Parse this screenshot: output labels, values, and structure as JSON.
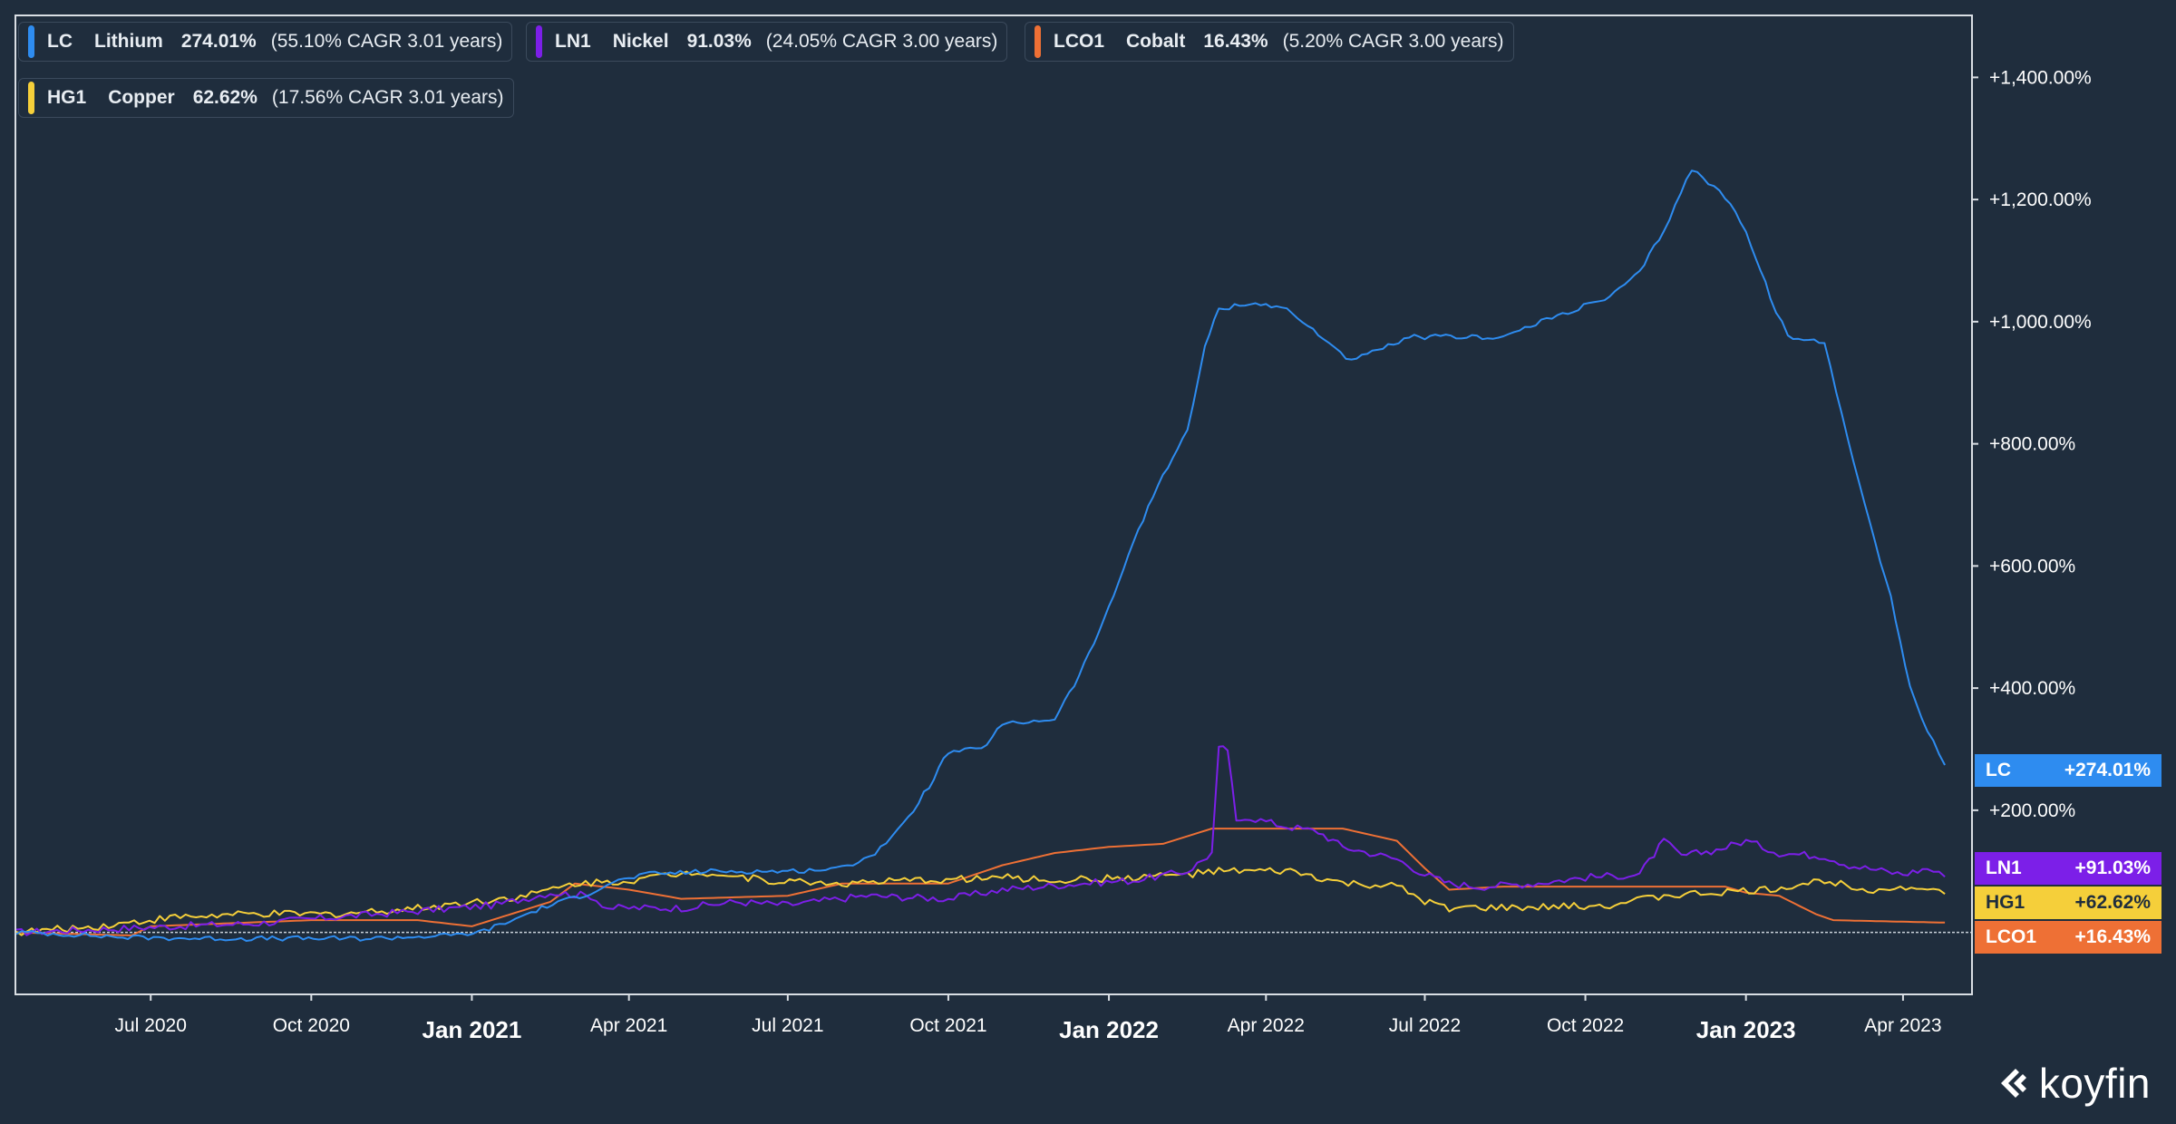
{
  "legend": [
    {
      "ticker": "LC",
      "name": "Lithium",
      "ret": "274.01%",
      "cagr": "(55.10% CAGR 3.01 years)",
      "color": "#2e8cf0"
    },
    {
      "ticker": "LN1",
      "name": "Nickel",
      "ret": "91.03%",
      "cagr": "(24.05% CAGR 3.00 years)",
      "color": "#7c1fe8"
    },
    {
      "ticker": "LCO1",
      "name": "Cobalt",
      "ret": "16.43%",
      "cagr": "(5.20% CAGR 3.00 years)",
      "color": "#ee7035"
    },
    {
      "ticker": "HG1",
      "name": "Copper",
      "ret": "62.62%",
      "cagr": "(17.56% CAGR 3.01 years)",
      "color": "#f5cf3a"
    }
  ],
  "tags": [
    {
      "ticker": "LC",
      "value": "+274.01%",
      "color": "#2e8cf0",
      "text_color": "#ffffff"
    },
    {
      "ticker": "LN1",
      "value": "+91.03%",
      "color": "#7c1fe8",
      "text_color": "#ffffff"
    },
    {
      "ticker": "HG1",
      "value": "+62.62%",
      "color": "#f5cf3a",
      "text_color": "#1f2d3d"
    },
    {
      "ticker": "LCO1",
      "value": "+16.43%",
      "color": "#ee7035",
      "text_color": "#ffffff"
    }
  ],
  "brand": {
    "name": "koyfin"
  },
  "chart_data": {
    "type": "line",
    "title": "",
    "xlabel": "",
    "ylabel": "",
    "x_range": [
      "2020-04-15",
      "2023-05-10"
    ],
    "ylim": [
      -100,
      1500
    ],
    "y_ticks": [
      {
        "value": 200,
        "label": "+200.00%"
      },
      {
        "value": 400,
        "label": "+400.00%"
      },
      {
        "value": 600,
        "label": "+600.00%"
      },
      {
        "value": 800,
        "label": "+800.00%"
      },
      {
        "value": 1000,
        "label": "+1,000.00%"
      },
      {
        "value": 1200,
        "label": "+1,200.00%"
      },
      {
        "value": 1400,
        "label": "+1,400.00%"
      }
    ],
    "x_ticks": [
      {
        "date": "2020-07-01",
        "label": "Jul 2020",
        "major": false
      },
      {
        "date": "2020-10-01",
        "label": "Oct 2020",
        "major": false
      },
      {
        "date": "2021-01-01",
        "label": "Jan 2021",
        "major": true
      },
      {
        "date": "2021-04-01",
        "label": "Apr 2021",
        "major": false
      },
      {
        "date": "2021-07-01",
        "label": "Jul 2021",
        "major": false
      },
      {
        "date": "2021-10-01",
        "label": "Oct 2021",
        "major": false
      },
      {
        "date": "2022-01-01",
        "label": "Jan 2022",
        "major": true
      },
      {
        "date": "2022-04-01",
        "label": "Apr 2022",
        "major": false
      },
      {
        "date": "2022-07-01",
        "label": "Jul 2022",
        "major": false
      },
      {
        "date": "2022-10-01",
        "label": "Oct 2022",
        "major": false
      },
      {
        "date": "2023-01-01",
        "label": "Jan 2023",
        "major": true
      },
      {
        "date": "2023-04-01",
        "label": "Apr 2023",
        "major": false
      }
    ],
    "grid": false,
    "legend_position": "top-left",
    "series": [
      {
        "name": "LC",
        "color": "#2e8cf0",
        "points": [
          [
            "2020-04-15",
            0
          ],
          [
            "2020-05-15",
            -3
          ],
          [
            "2020-06-15",
            -8
          ],
          [
            "2020-08-01",
            -10
          ],
          [
            "2020-11-01",
            -10
          ],
          [
            "2020-12-20",
            -5
          ],
          [
            "2021-01-05",
            0
          ],
          [
            "2021-01-20",
            15
          ],
          [
            "2021-02-10",
            40
          ],
          [
            "2021-03-10",
            65
          ],
          [
            "2021-03-20",
            80
          ],
          [
            "2021-04-10",
            95
          ],
          [
            "2021-05-15",
            100
          ],
          [
            "2021-07-01",
            100
          ],
          [
            "2021-08-01",
            105
          ],
          [
            "2021-08-20",
            130
          ],
          [
            "2021-09-05",
            175
          ],
          [
            "2021-09-20",
            240
          ],
          [
            "2021-10-01",
            295
          ],
          [
            "2021-10-20,",
            300
          ],
          [
            "2021-11-01",
            340
          ],
          [
            "2021-12-01",
            350
          ],
          [
            "2021-12-15",
            420
          ],
          [
            "2022-01-01",
            530
          ],
          [
            "2022-01-15",
            640
          ],
          [
            "2022-02-01",
            750
          ],
          [
            "2022-02-15",
            820
          ],
          [
            "2022-02-25",
            960
          ],
          [
            "2022-03-05",
            1020
          ],
          [
            "2022-03-20",
            1030
          ],
          [
            "2022-04-10",
            1025
          ],
          [
            "2022-05-01",
            980
          ],
          [
            "2022-05-20",
            935
          ],
          [
            "2022-06-10",
            960
          ],
          [
            "2022-06-25",
            975
          ],
          [
            "2022-08-15",
            975
          ],
          [
            "2022-09-15",
            1010
          ],
          [
            "2022-10-15",
            1040
          ],
          [
            "2022-11-01",
            1080
          ],
          [
            "2022-11-15",
            1150
          ],
          [
            "2022-12-01",
            1250
          ],
          [
            "2022-12-20",
            1205
          ],
          [
            "2023-01-01",
            1150
          ],
          [
            "2023-01-15",
            1040
          ],
          [
            "2023-01-25",
            975
          ],
          [
            "2023-02-15",
            965
          ],
          [
            "2023-02-25",
            850
          ],
          [
            "2023-03-10",
            700
          ],
          [
            "2023-03-25",
            550
          ],
          [
            "2023-04-05",
            400
          ],
          [
            "2023-04-15",
            330
          ],
          [
            "2023-04-25",
            274
          ]
        ]
      },
      {
        "name": "LN1",
        "color": "#7c1fe8",
        "points": [
          [
            "2020-04-15",
            0
          ],
          [
            "2020-06-01",
            5
          ],
          [
            "2020-07-15",
            10
          ],
          [
            "2020-09-01",
            15
          ],
          [
            "2020-10-15",
            25
          ],
          [
            "2020-12-01",
            35
          ],
          [
            "2021-01-15",
            45
          ],
          [
            "2021-02-15",
            65
          ],
          [
            "2021-03-10",
            60
          ],
          [
            "2021-03-20",
            40
          ],
          [
            "2021-05-01",
            40
          ],
          [
            "2021-06-01",
            50
          ],
          [
            "2021-07-01",
            45
          ],
          [
            "2021-08-15",
            60
          ],
          [
            "2021-10-01",
            55
          ],
          [
            "2021-11-01",
            70
          ],
          [
            "2021-12-15",
            80
          ],
          [
            "2022-01-15",
            85
          ],
          [
            "2022-02-15",
            100
          ],
          [
            "2022-03-01",
            130
          ],
          [
            "2022-03-05",
            300
          ],
          [
            "2022-03-10",
            300
          ],
          [
            "2022-03-15",
            180
          ],
          [
            "2022-03-20",
            190
          ],
          [
            "2022-04-10",
            175
          ],
          [
            "2022-05-01",
            165
          ],
          [
            "2022-05-15",
            140
          ],
          [
            "2022-06-15",
            120
          ],
          [
            "2022-07-01",
            95
          ],
          [
            "2022-07-15",
            80
          ],
          [
            "2022-08-01",
            75
          ],
          [
            "2022-09-01",
            80
          ],
          [
            "2022-10-01",
            90
          ],
          [
            "2022-11-01",
            95
          ],
          [
            "2022-11-15",
            150
          ],
          [
            "2022-11-25",
            125
          ],
          [
            "2022-12-15",
            135
          ],
          [
            "2023-01-01",
            150
          ],
          [
            "2023-01-20",
            130
          ],
          [
            "2023-02-15",
            125
          ],
          [
            "2023-03-01",
            110
          ],
          [
            "2023-04-01",
            95
          ],
          [
            "2023-04-15",
            105
          ],
          [
            "2023-04-25",
            91
          ]
        ]
      },
      {
        "name": "LCO1",
        "color": "#ee7035",
        "points": [
          [
            "2020-04-15",
            0
          ],
          [
            "2020-06-20",
            -5
          ],
          [
            "2020-07-01",
            10
          ],
          [
            "2020-10-01",
            20
          ],
          [
            "2020-12-01",
            20
          ],
          [
            "2021-01-01",
            10
          ],
          [
            "2021-02-15",
            50
          ],
          [
            "2021-03-01",
            80
          ],
          [
            "2021-04-01",
            70
          ],
          [
            "2021-05-01",
            55
          ],
          [
            "2021-07-01",
            60
          ],
          [
            "2021-08-01",
            80
          ],
          [
            "2021-10-01",
            80
          ],
          [
            "2021-11-01",
            110
          ],
          [
            "2021-12-01",
            130
          ],
          [
            "2022-01-01",
            140
          ],
          [
            "2022-02-01",
            145
          ],
          [
            "2022-03-01",
            170
          ],
          [
            "2022-05-15",
            170
          ],
          [
            "2022-06-15",
            150
          ],
          [
            "2022-07-01",
            105
          ],
          [
            "2022-07-15",
            70
          ],
          [
            "2022-08-15",
            75
          ],
          [
            "2022-12-20",
            75
          ],
          [
            "2023-01-01",
            65
          ],
          [
            "2023-01-20",
            60
          ],
          [
            "2023-02-10",
            30
          ],
          [
            "2023-02-20",
            20
          ],
          [
            "2023-04-25",
            16
          ]
        ]
      },
      {
        "name": "HG1",
        "color": "#f5cf3a",
        "points": [
          [
            "2020-04-15",
            0
          ],
          [
            "2020-06-01",
            10
          ],
          [
            "2020-07-15",
            25
          ],
          [
            "2020-09-01",
            30
          ],
          [
            "2020-10-15",
            30
          ],
          [
            "2020-12-01",
            40
          ],
          [
            "2021-01-01",
            50
          ],
          [
            "2021-02-01",
            60
          ],
          [
            "2021-03-01",
            80
          ],
          [
            "2021-04-01",
            85
          ],
          [
            "2021-05-10",
            100
          ],
          [
            "2021-06-20",
            85
          ],
          [
            "2021-08-01",
            80
          ],
          [
            "2021-09-15",
            85
          ],
          [
            "2021-11-01",
            90
          ],
          [
            "2021-12-01",
            85
          ],
          [
            "2022-01-15",
            90
          ],
          [
            "2022-02-15",
            95
          ],
          [
            "2022-03-05",
            100
          ],
          [
            "2022-04-15",
            100
          ],
          [
            "2022-05-15",
            80
          ],
          [
            "2022-06-15",
            75
          ],
          [
            "2022-07-01",
            50
          ],
          [
            "2022-07-15",
            40
          ],
          [
            "2022-09-01",
            40
          ],
          [
            "2022-10-15",
            45
          ],
          [
            "2022-11-15",
            60
          ],
          [
            "2022-12-15",
            65
          ],
          [
            "2023-01-15",
            70
          ],
          [
            "2023-02-15",
            85
          ],
          [
            "2023-03-15",
            70
          ],
          [
            "2023-04-15",
            75
          ],
          [
            "2023-04-25",
            63
          ]
        ]
      }
    ]
  }
}
